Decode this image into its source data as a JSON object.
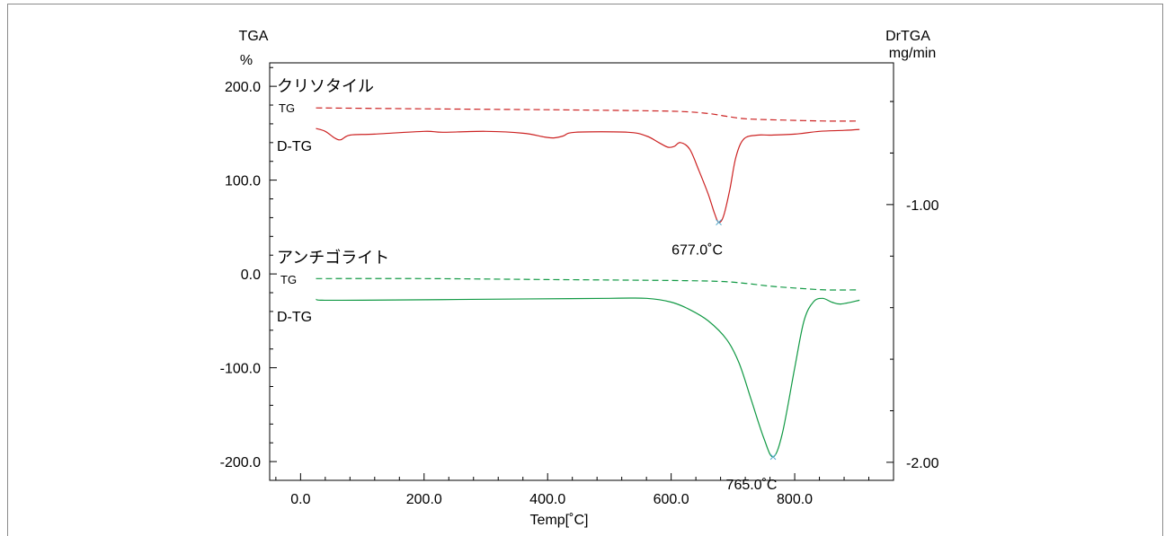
{
  "chart_data": {
    "type": "line",
    "left_axis": {
      "title": "TGA",
      "unit": "%",
      "ylim": [
        -220,
        225
      ],
      "ticks": [
        200,
        100,
        0,
        -100,
        -200
      ],
      "tick_labels": [
        "200.0",
        "100.0",
        "0.0",
        "-100.0",
        "-200.0"
      ]
    },
    "right_axis": {
      "title": "DrTGA",
      "unit": "mg/min",
      "ylim": [
        -2.07,
        -0.45
      ],
      "ticks": [
        -1.0,
        -2.0
      ],
      "tick_labels": [
        "-1.00",
        "-2.00"
      ]
    },
    "x_axis": {
      "label": "Temp[˚C]",
      "xlim": [
        -50,
        960
      ],
      "ticks": [
        0,
        200,
        400,
        600,
        800
      ],
      "tick_labels": [
        "0.0",
        "200.0",
        "400.0",
        "600.0",
        "800.0"
      ]
    },
    "groups": [
      {
        "name": "クリソタイル",
        "color": "#cc2222",
        "tg_label": "TG",
        "dtg_label": "D-TG",
        "peak_label": "677.0˚C"
      },
      {
        "name": "アンチゴライト",
        "color": "#119944",
        "tg_label": "TG",
        "dtg_label": "D-TG",
        "peak_label": "765.0˚C"
      }
    ],
    "series": [
      {
        "name": "クリソタイル TG",
        "group": 0,
        "style": "dashed",
        "x": [
          25,
          200,
          400,
          550,
          620,
          660,
          690,
          710,
          730,
          780,
          850,
          900
        ],
        "y": [
          177,
          176,
          175,
          174,
          173,
          171,
          168,
          166,
          165,
          164,
          163,
          163
        ]
      },
      {
        "name": "クリソタイル D-TG",
        "group": 0,
        "style": "solid",
        "x": [
          25,
          40,
          55,
          65,
          80,
          120,
          200,
          230,
          300,
          360,
          395,
          410,
          425,
          445,
          530,
          560,
          580,
          595,
          605,
          615,
          630,
          645,
          660,
          670,
          677,
          685,
          695,
          705,
          718,
          740,
          760,
          800,
          840,
          880,
          905
        ],
        "y": [
          155,
          152,
          145,
          143,
          148,
          149,
          152,
          151,
          152,
          150,
          146,
          145,
          147,
          151,
          151,
          147,
          140,
          135,
          136,
          140,
          133,
          110,
          85,
          65,
          55,
          62,
          90,
          125,
          144,
          148,
          148,
          149,
          152,
          153,
          154
        ]
      },
      {
        "name": "アンチゴライト TG",
        "group": 1,
        "style": "dashed",
        "x": [
          25,
          200,
          400,
          600,
          680,
          720,
          760,
          800,
          850,
          900
        ],
        "y": [
          -5,
          -5,
          -6,
          -7,
          -8,
          -10,
          -13,
          -15,
          -17,
          -17
        ]
      },
      {
        "name": "アンチゴライト D-TG",
        "group": 1,
        "style": "solid",
        "x": [
          25,
          35,
          100,
          300,
          500,
          560,
          600,
          630,
          660,
          690,
          710,
          730,
          750,
          765,
          780,
          800,
          815,
          830,
          845,
          860,
          875,
          905
        ],
        "y": [
          -27,
          -28,
          -28,
          -27,
          -26,
          -26,
          -30,
          -38,
          -50,
          -70,
          -95,
          -135,
          -175,
          -195,
          -170,
          -100,
          -50,
          -30,
          -26,
          -30,
          -32,
          -28
        ]
      }
    ],
    "peaks": [
      {
        "x": 677,
        "y": 55,
        "label": "677.0˚C",
        "group": 0
      },
      {
        "x": 765,
        "y": -195,
        "label": "765.0˚C",
        "group": 1
      }
    ],
    "grid": false
  }
}
